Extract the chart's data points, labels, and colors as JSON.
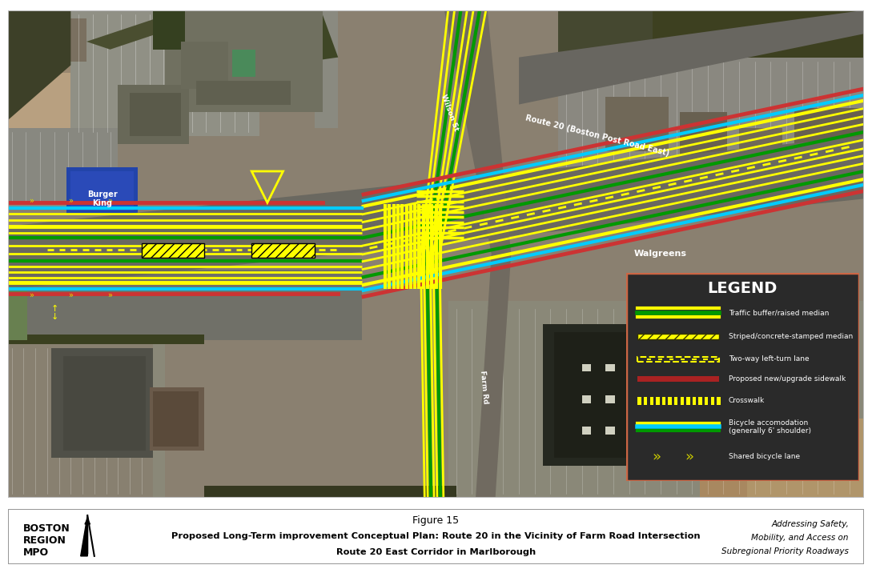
{
  "title_line1": "Figure 15",
  "title_line2": "Proposed Long-Term improvement Conceptual Plan: Route 20 in the Vicinity of Farm Road Intersection",
  "title_line3": "Route 20 East Corridor in Marlborough",
  "org_line1": "BOSTON",
  "org_line2": "REGION",
  "org_line3": "MPO",
  "right_text_line1": "Addressing Safety,",
  "right_text_line2": "Mobility, and Access on",
  "right_text_line3": "Subregional Priority Roadways",
  "legend_title": "LEGEND",
  "legend_items": [
    {
      "label": "Traffic buffer/raised median",
      "type": "traffic_buffer"
    },
    {
      "label": "Striped/concrete-stamped median",
      "type": "striped_median"
    },
    {
      "label": "Two-way left-turn lane",
      "type": "twoway_turn"
    },
    {
      "label": "Proposed new/upgrade sidewalk",
      "type": "sidewalk"
    },
    {
      "label": "Crosswalk",
      "type": "crosswalk"
    },
    {
      "label": "Bicycle accomodation\n(generally 6' shoulder)",
      "type": "bike_accom"
    },
    {
      "label": "Shared bicycle lane",
      "type": "shared_bike"
    }
  ],
  "legend_bg": "#2a2a2a",
  "legend_border": "#cc6644",
  "footer_bg": "#ffffff",
  "footer_border": "#999999",
  "yellow": "#ffff00",
  "green": "#00aa00",
  "cyan": "#00ccff",
  "red_sidewalk": "#cc3333",
  "map_border": "#bbbbbb"
}
